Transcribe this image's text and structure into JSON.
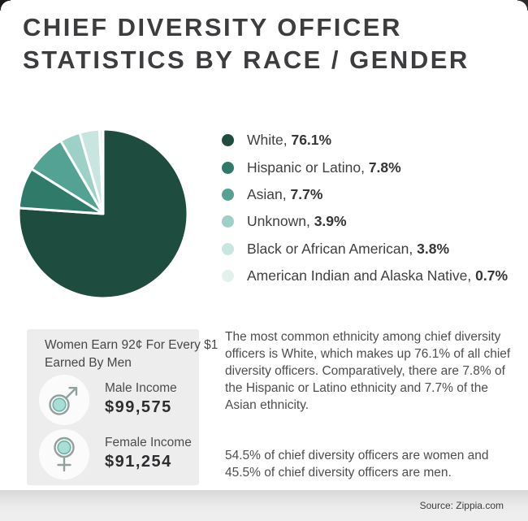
{
  "title": {
    "lines": [
      "CHIEF DIVERSITY OFFICER",
      "STATISTICS BY RACE / GENDER"
    ]
  },
  "chart_data": {
    "type": "pie",
    "labels": [
      "White",
      "Hispanic or Latino",
      "Asian",
      "Unknown",
      "Black or African American",
      "American Indian and Alaska Native"
    ],
    "values": [
      76.1,
      7.8,
      7.7,
      3.9,
      3.8,
      0.7
    ],
    "value_labels": [
      "76.1%",
      "7.8%",
      "7.7%",
      "3.9%",
      "3.8%",
      "0.7%"
    ],
    "colors": [
      "#1e4c3f",
      "#2f7a68",
      "#54a294",
      "#9dd1c8",
      "#c9e5e0",
      "#e3f1ed"
    ],
    "separator_color": "#ffffff",
    "legend_position": "right",
    "start_angle_deg": 0,
    "direction": "clockwise"
  },
  "pay_gap_card": {
    "headline_lines": [
      "Women Earn 92¢ For Every $1",
      "Earned By Men"
    ],
    "male": {
      "label": "Male Income",
      "value": "$99,575"
    },
    "female": {
      "label": "Female Income",
      "value": "$91,254"
    },
    "icon_fill": "#a7ded6",
    "icon_ring": "#6fb3a9",
    "icon_outline": "#93a19e"
  },
  "body_text": {
    "paragraph1": "The most common ethnicity among chief diversity officers is White, which makes up 76.1% of all chief diversity officers. Comparatively, there are 7.8% of the Hispanic or Latino ethnicity and 7.7% of the Asian ethnicity.",
    "paragraph2": "54.5% of chief diversity officers are women and 45.5% of chief diversity officers are men."
  },
  "footer": {
    "source": "Source: Zippia.com"
  }
}
